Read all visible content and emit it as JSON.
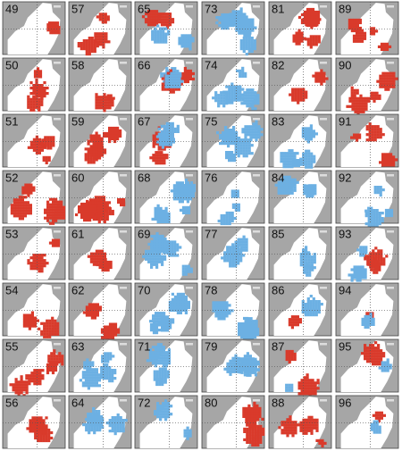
{
  "panels": [
    {
      "label": "49"
    },
    {
      "label": "50"
    },
    {
      "label": "51"
    },
    {
      "label": "52"
    },
    {
      "label": "53"
    },
    {
      "label": "54"
    },
    {
      "label": "55"
    },
    {
      "label": "56"
    },
    {
      "label": "57"
    },
    {
      "label": "58"
    },
    {
      "label": "59"
    },
    {
      "label": "60"
    },
    {
      "label": "61"
    },
    {
      "label": "62"
    },
    {
      "label": "63"
    },
    {
      "label": "64"
    },
    {
      "label": "65"
    },
    {
      "label": "66"
    },
    {
      "label": "67"
    },
    {
      "label": "68"
    },
    {
      "label": "69"
    },
    {
      "label": "70"
    },
    {
      "label": "71"
    },
    {
      "label": "72"
    },
    {
      "label": "73"
    },
    {
      "label": "74"
    },
    {
      "label": "75"
    },
    {
      "label": "76"
    },
    {
      "label": "77"
    },
    {
      "label": "78"
    },
    {
      "label": "79"
    },
    {
      "label": "80"
    },
    {
      "label": "81"
    },
    {
      "label": "82"
    },
    {
      "label": "83"
    },
    {
      "label": "84"
    },
    {
      "label": "85"
    },
    {
      "label": "86"
    },
    {
      "label": "87"
    },
    {
      "label": "88"
    },
    {
      "label": "89"
    },
    {
      "label": "90"
    },
    {
      "label": "91"
    },
    {
      "label": "92"
    },
    {
      "label": "93"
    },
    {
      "label": "94"
    },
    {
      "label": "95"
    },
    {
      "label": "96"
    }
  ]
}
